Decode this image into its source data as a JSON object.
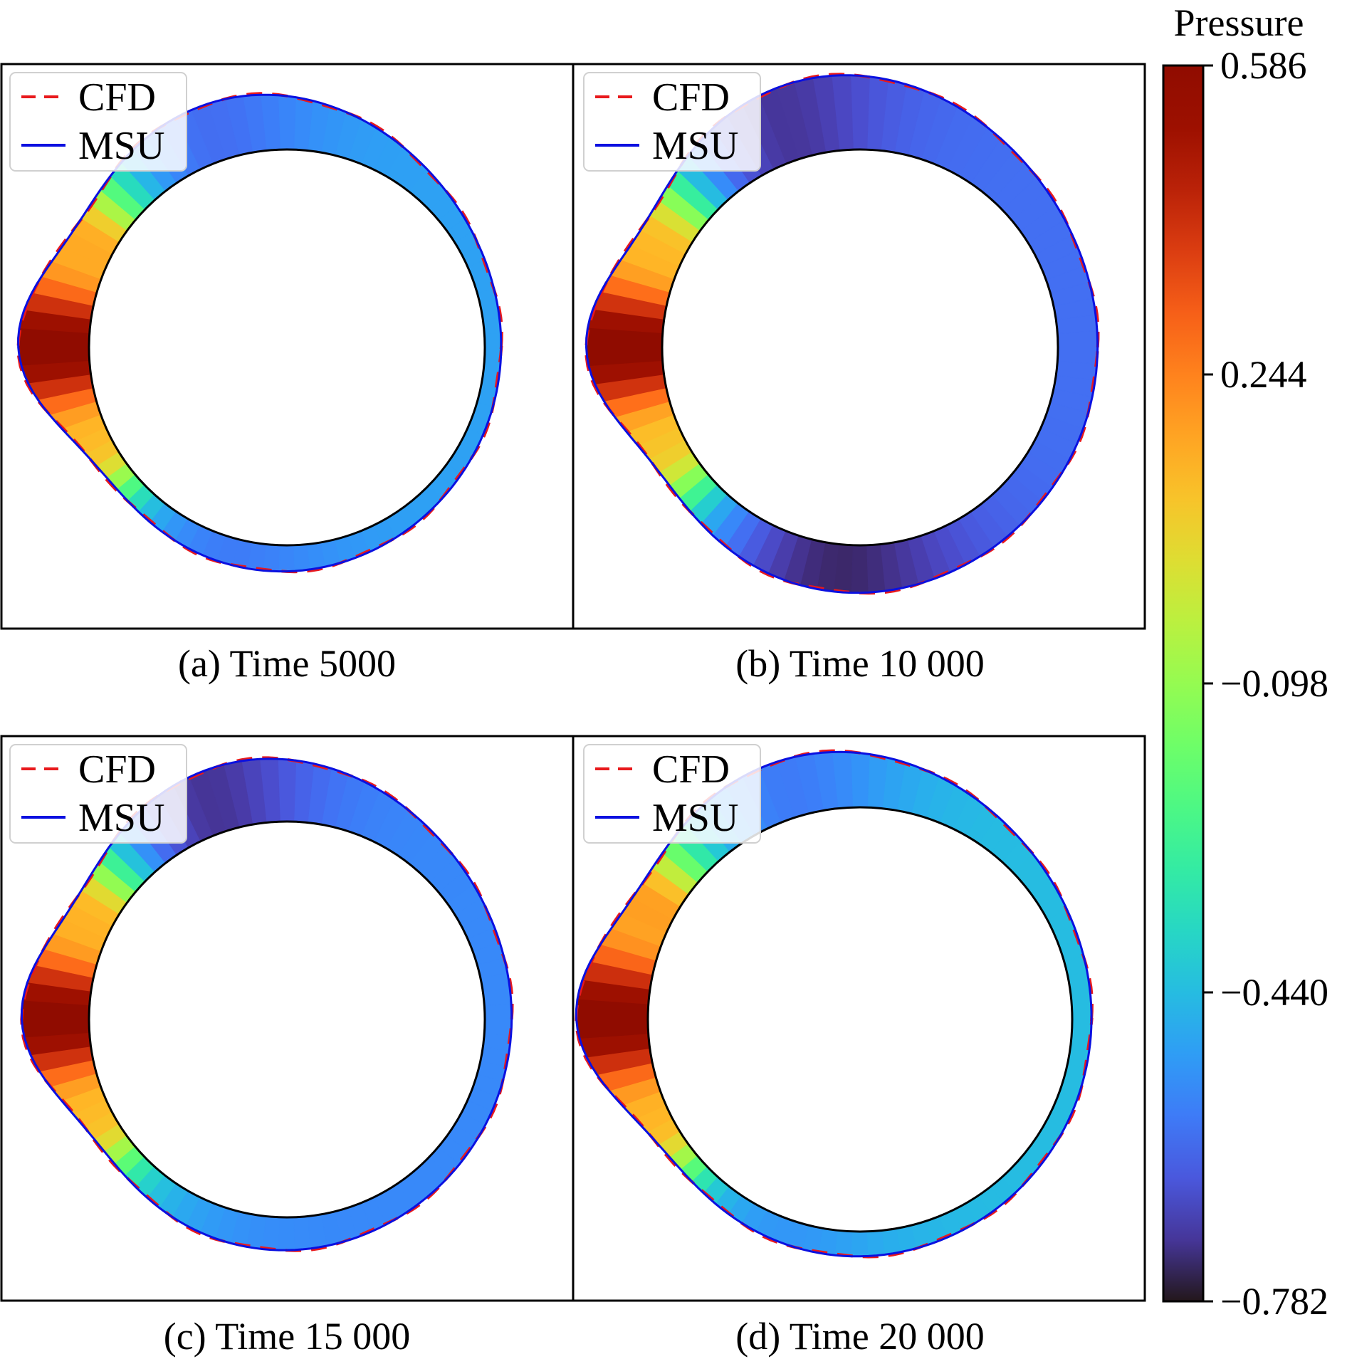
{
  "chart_data": [
    {
      "type": "heatmap",
      "caption": "(a) Time 5000",
      "legend": [
        "CFD",
        "MSU"
      ],
      "profile": {
        "front_peak": 0.26,
        "top_bulge": 0.28,
        "upper_tilt": 0.0,
        "lower_bulge": 0.12,
        "flat": 0.07
      },
      "pressure": {
        "rear_base": -0.5,
        "upper_min": -0.66,
        "lower_min": -0.62,
        "upper_min_angle": 120,
        "lower_min_angle": 240
      }
    },
    {
      "type": "heatmap",
      "caption": "(b) Time 10 000",
      "legend": [
        "CFD",
        "MSU"
      ],
      "profile": {
        "front_peak": 0.26,
        "top_bulge": 0.34,
        "upper_tilt": 0.04,
        "lower_bulge": 0.2,
        "flat": 0.18
      },
      "pressure": {
        "rear_base": -0.6,
        "upper_min": -0.78,
        "lower_min": -0.76,
        "upper_min_angle": 120,
        "lower_min_angle": 260
      }
    },
    {
      "type": "heatmap",
      "caption": "(c) Time 15 000",
      "legend": [
        "CFD",
        "MSU"
      ],
      "profile": {
        "front_peak": 0.24,
        "top_bulge": 0.3,
        "upper_tilt": 0.03,
        "lower_bulge": 0.14,
        "flat": 0.12
      },
      "pressure": {
        "rear_base": -0.55,
        "upper_min": -0.78,
        "lower_min": -0.55,
        "upper_min_angle": 118,
        "lower_min_angle": 240
      }
    },
    {
      "type": "heatmap",
      "caption": "(d) Time 20 000",
      "legend": [
        "CFD",
        "MSU"
      ],
      "profile": {
        "front_peak": 0.25,
        "top_bulge": 0.26,
        "upper_tilt": 0.0,
        "lower_bulge": 0.1,
        "flat": 0.08
      },
      "pressure": {
        "rear_base": -0.44,
        "upper_min": -0.62,
        "lower_min": -0.58,
        "upper_min_angle": 115,
        "lower_min_angle": 235
      }
    }
  ],
  "colorbar": {
    "title": "Pressure",
    "min": -0.782,
    "max": 0.586,
    "ticks": [
      0.586,
      0.244,
      -0.098,
      -0.44,
      -0.782
    ],
    "tick_labels": [
      "0.586",
      "0.244",
      "−0.098",
      "−0.440",
      "−0.782"
    ],
    "colormap": "turbo"
  },
  "colors": {
    "cfd_line": "#e8191c",
    "msu_line": "#0a10e0",
    "cylinder": "#000000"
  }
}
